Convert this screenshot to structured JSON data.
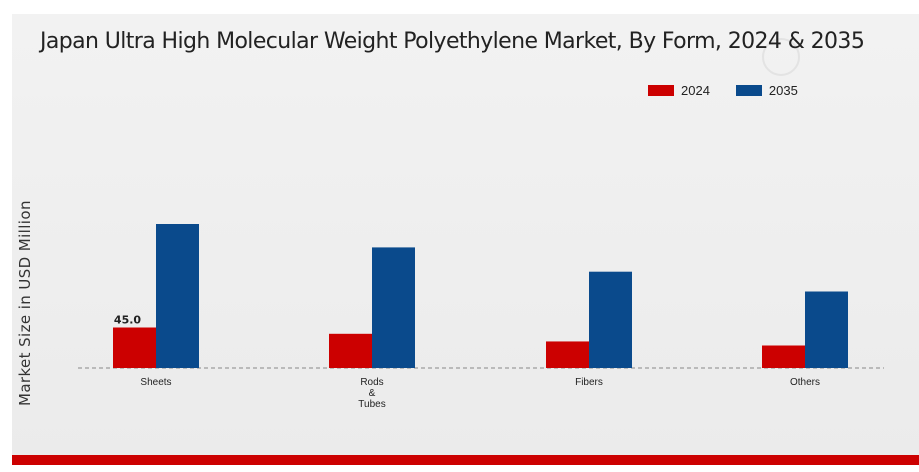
{
  "chart_data": {
    "type": "bar",
    "title": "Japan Ultra High Molecular Weight Polyethylene Market, By Form, 2024 & 2035",
    "ylabel": "Market Size in USD Million",
    "xlabel": "",
    "categories": [
      "Sheets",
      "Rods & Tubes",
      "Fibers",
      "Others"
    ],
    "category_lines": [
      [
        "Sheets"
      ],
      [
        "Rods",
        "&",
        "Tubes"
      ],
      [
        "Fibers"
      ],
      [
        "Others"
      ]
    ],
    "series": [
      {
        "name": "2024",
        "color": "#cc0000",
        "values": [
          45.0,
          38.0,
          29.5,
          25.0
        ]
      },
      {
        "name": "2035",
        "color": "#0a4a8c",
        "values": [
          160.0,
          134.0,
          107.0,
          85.0
        ]
      }
    ],
    "data_labels": [
      {
        "series": 0,
        "index": 0,
        "text": "45.0"
      }
    ],
    "ylim": [
      0,
      180
    ],
    "grid": false,
    "legend_position": "top-right"
  }
}
